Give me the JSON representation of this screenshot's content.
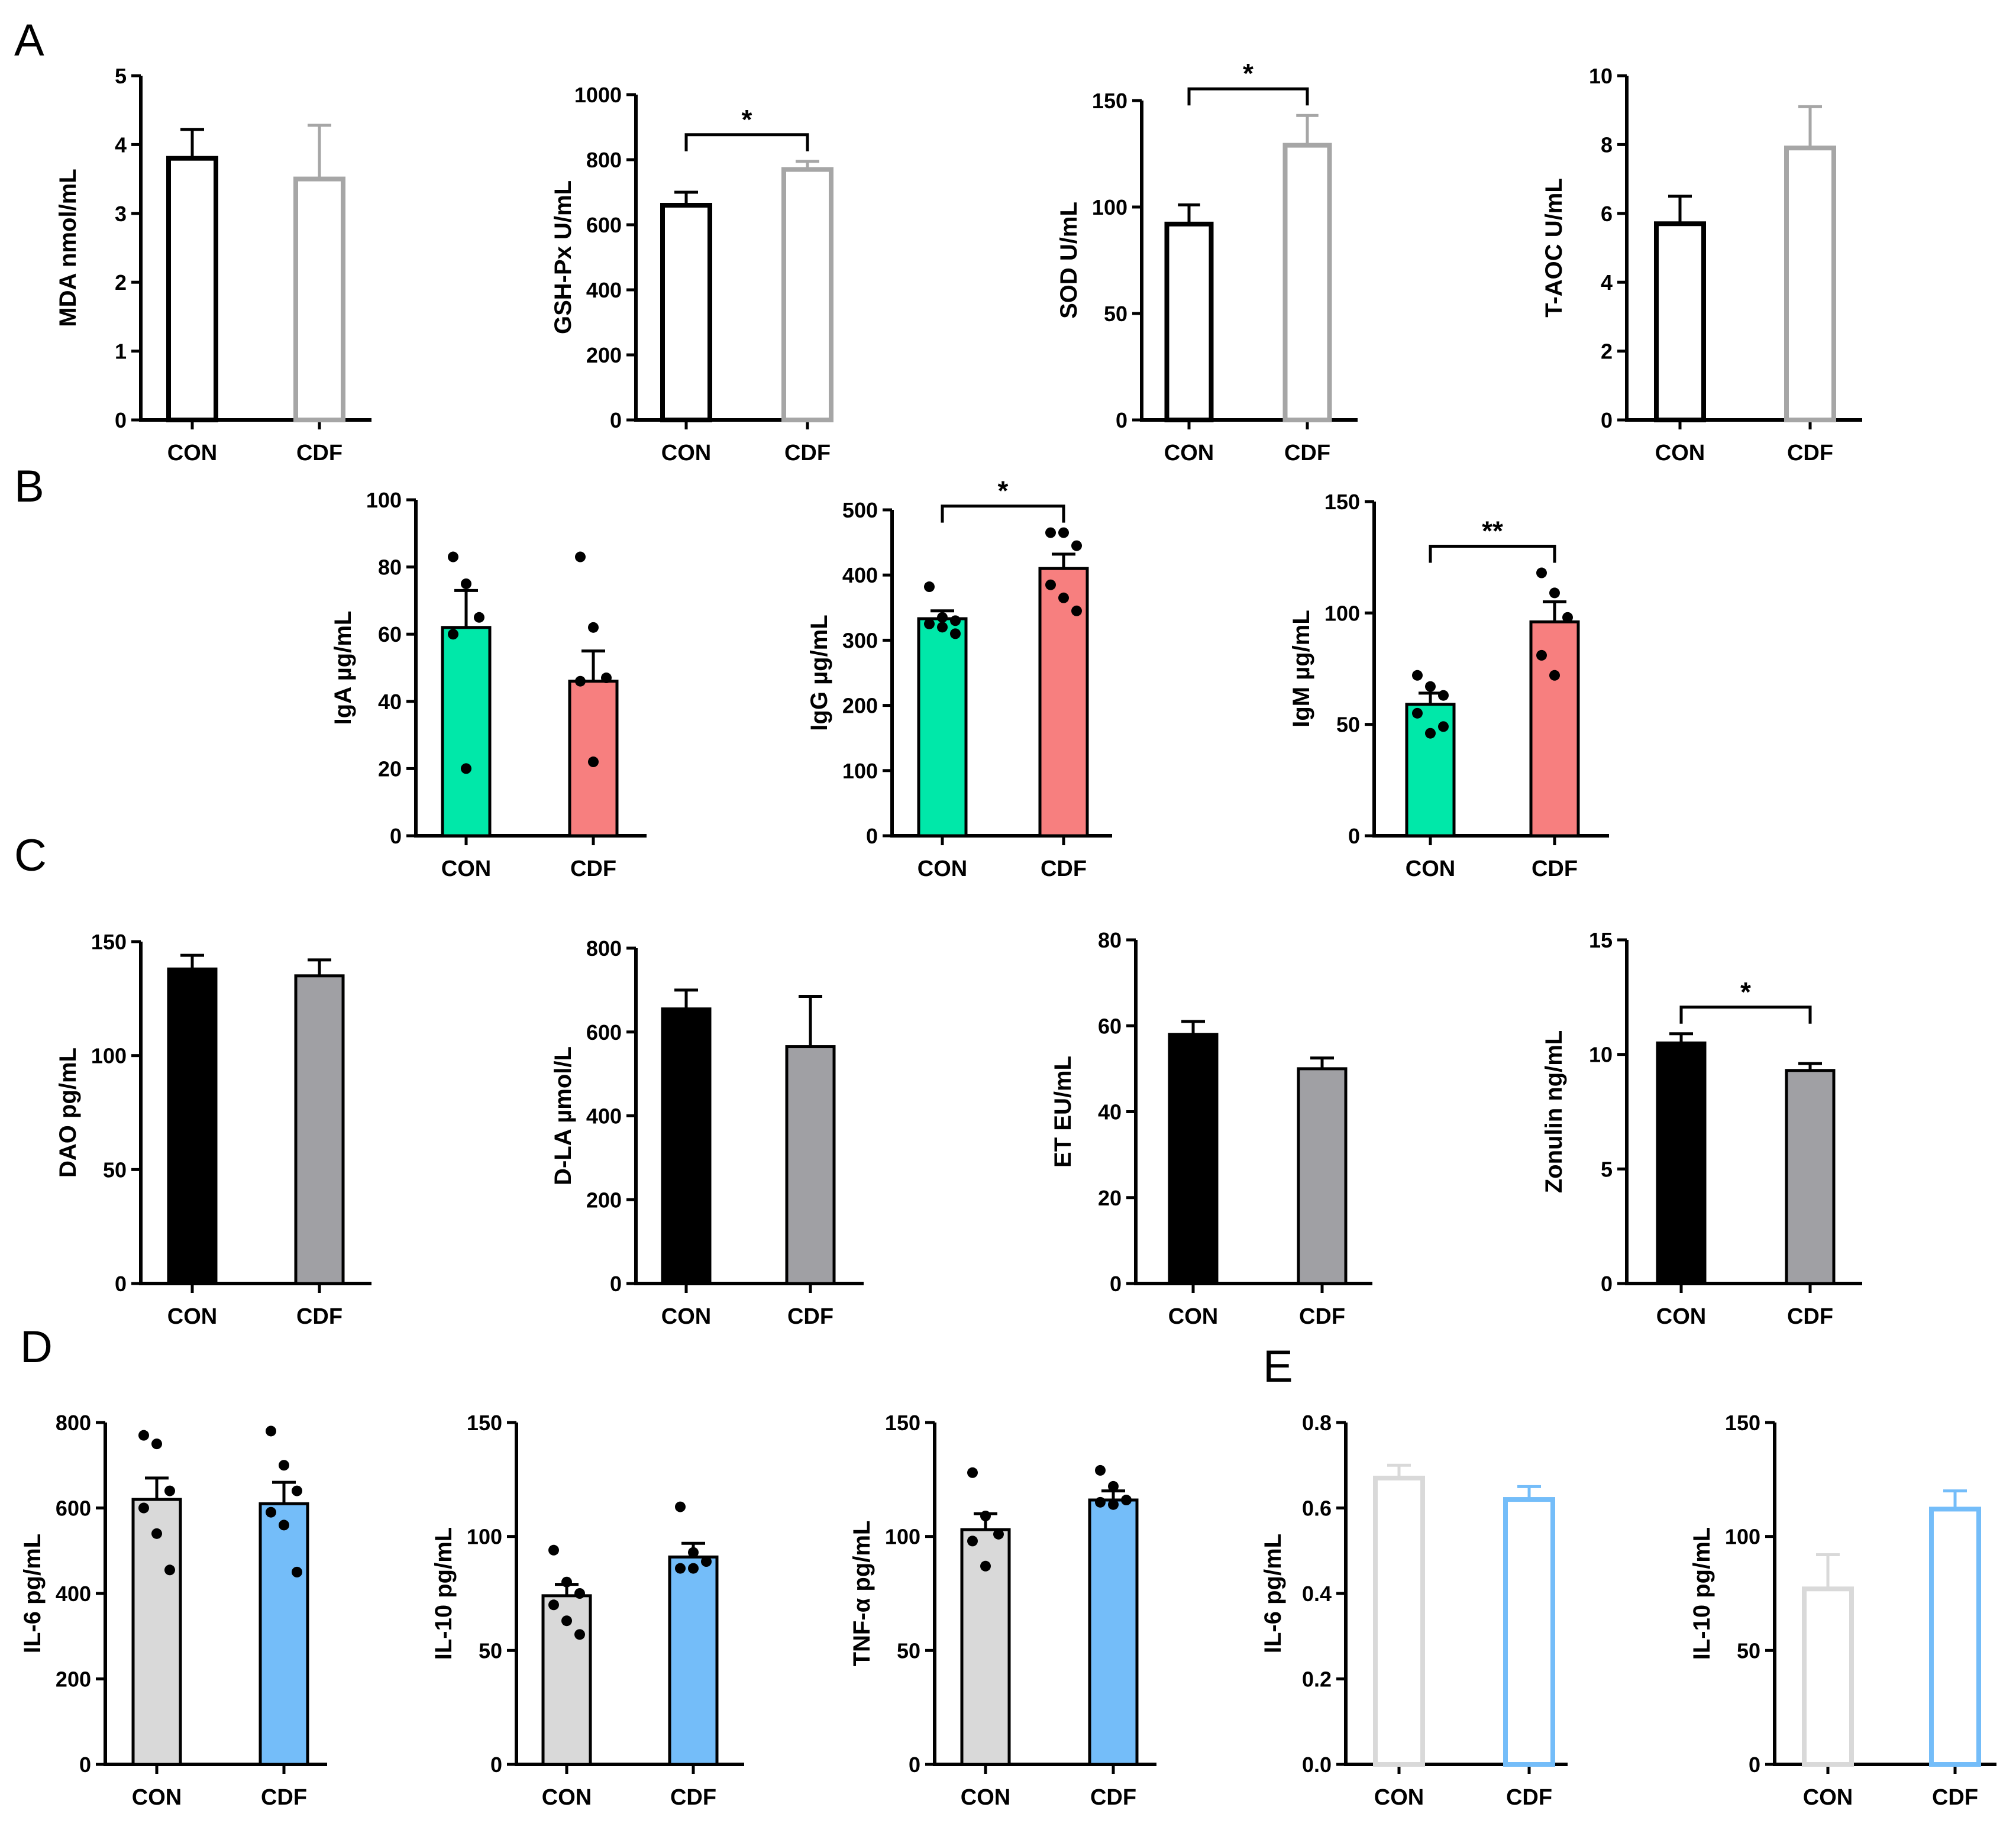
{
  "panel_letters": [
    "A",
    "B",
    "C",
    "D",
    "E"
  ],
  "chart_data": [
    {
      "id": "A1",
      "panel": "A",
      "type": "bar",
      "style": "hollow",
      "colors": [
        "#000000",
        "#a6a6a6"
      ],
      "categories": [
        "CON",
        "CDF"
      ],
      "values": [
        3.8,
        3.5
      ],
      "errors": [
        0.42,
        0.78
      ],
      "ylabel": "MDA nmol/mL",
      "ylim": [
        0,
        5
      ],
      "yticks": [
        0,
        1,
        2,
        3,
        4,
        5
      ],
      "points": null,
      "sig": ""
    },
    {
      "id": "A2",
      "panel": "A",
      "type": "bar",
      "style": "hollow",
      "colors": [
        "#000000",
        "#a6a6a6"
      ],
      "categories": [
        "CON",
        "CDF"
      ],
      "values": [
        660,
        770
      ],
      "errors": [
        40,
        25
      ],
      "ylabel": "GSH-Px U/mL",
      "ylim": [
        0,
        1000
      ],
      "yticks": [
        0,
        200,
        400,
        600,
        800,
        1000
      ],
      "points": null,
      "sig": "*"
    },
    {
      "id": "A3",
      "panel": "A",
      "type": "bar",
      "style": "hollow",
      "colors": [
        "#000000",
        "#a6a6a6"
      ],
      "categories": [
        "CON",
        "CDF"
      ],
      "values": [
        92,
        129
      ],
      "errors": [
        9,
        14
      ],
      "ylabel": "SOD U/mL",
      "ylim": [
        0,
        150
      ],
      "yticks": [
        0,
        50,
        100,
        150
      ],
      "points": null,
      "sig": "*"
    },
    {
      "id": "A4",
      "panel": "A",
      "type": "bar",
      "style": "hollow",
      "colors": [
        "#000000",
        "#a6a6a6"
      ],
      "categories": [
        "CON",
        "CDF"
      ],
      "values": [
        5.7,
        7.9
      ],
      "errors": [
        0.8,
        1.2
      ],
      "ylabel": "T-AOC U/mL",
      "ylim": [
        0,
        10
      ],
      "yticks": [
        0,
        2,
        4,
        6,
        8,
        10
      ],
      "points": null,
      "sig": ""
    },
    {
      "id": "B1",
      "panel": "B",
      "type": "bar",
      "style": "filled",
      "colors": [
        "#00e8a9",
        "#f77f7f"
      ],
      "categories": [
        "CON",
        "CDF"
      ],
      "values": [
        62,
        46
      ],
      "errors": [
        11,
        9
      ],
      "ylabel": "IgA µg/mL",
      "ylim": [
        0,
        100
      ],
      "yticks": [
        0,
        20,
        40,
        60,
        80,
        100
      ],
      "points": [
        [
          83,
          75,
          65,
          60,
          20
        ],
        [
          83,
          62,
          47,
          46,
          22
        ]
      ],
      "sig": ""
    },
    {
      "id": "B2",
      "panel": "B",
      "type": "bar",
      "style": "filled",
      "colors": [
        "#00e8a9",
        "#f77f7f"
      ],
      "categories": [
        "CON",
        "CDF"
      ],
      "values": [
        333,
        410
      ],
      "errors": [
        12,
        22
      ],
      "ylabel": "IgG µg/mL",
      "ylim": [
        0,
        500
      ],
      "yticks": [
        0,
        100,
        200,
        300,
        400,
        500
      ],
      "points": [
        [
          382,
          335,
          330,
          325,
          320,
          310
        ],
        [
          465,
          465,
          445,
          385,
          365,
          345
        ]
      ],
      "sig": "*"
    },
    {
      "id": "B3",
      "panel": "B",
      "type": "bar",
      "style": "filled",
      "colors": [
        "#00e8a9",
        "#f77f7f"
      ],
      "categories": [
        "CON",
        "CDF"
      ],
      "values": [
        59,
        96
      ],
      "errors": [
        5,
        9
      ],
      "ylabel": "IgM µg/mL",
      "ylim": [
        0,
        150
      ],
      "yticks": [
        0,
        50,
        100,
        150
      ],
      "points": [
        [
          72,
          67,
          63,
          55,
          46,
          49
        ],
        [
          118,
          109,
          98,
          81,
          72
        ]
      ],
      "sig": "**"
    },
    {
      "id": "C1",
      "panel": "C",
      "type": "bar",
      "style": "filled",
      "colors": [
        "#000000",
        "#a0a0a4"
      ],
      "categories": [
        "CON",
        "CDF"
      ],
      "values": [
        138,
        135
      ],
      "errors": [
        6,
        7
      ],
      "ylabel": "DAO pg/mL",
      "ylim": [
        0,
        150
      ],
      "yticks": [
        0,
        50,
        100,
        150
      ],
      "points": null,
      "sig": ""
    },
    {
      "id": "C2",
      "panel": "C",
      "type": "bar",
      "style": "filled",
      "colors": [
        "#000000",
        "#a0a0a4"
      ],
      "categories": [
        "CON",
        "CDF"
      ],
      "values": [
        655,
        565
      ],
      "errors": [
        45,
        120
      ],
      "ylabel": "D-LA µmol/L",
      "ylim": [
        0,
        800
      ],
      "yticks": [
        0,
        200,
        400,
        600,
        800
      ],
      "points": null,
      "sig": ""
    },
    {
      "id": "C3",
      "panel": "C",
      "type": "bar",
      "style": "filled",
      "colors": [
        "#000000",
        "#a0a0a4"
      ],
      "categories": [
        "CON",
        "CDF"
      ],
      "values": [
        58,
        50
      ],
      "errors": [
        3,
        2.5
      ],
      "ylabel": "ET EU/mL",
      "ylim": [
        0,
        80
      ],
      "yticks": [
        0,
        20,
        40,
        60,
        80
      ],
      "points": null,
      "sig": ""
    },
    {
      "id": "C4",
      "panel": "C",
      "type": "bar",
      "style": "filled",
      "colors": [
        "#000000",
        "#a0a0a4"
      ],
      "categories": [
        "CON",
        "CDF"
      ],
      "values": [
        10.5,
        9.3
      ],
      "errors": [
        0.4,
        0.3
      ],
      "ylabel": "Zonulin ng/mL",
      "ylim": [
        0,
        15
      ],
      "yticks": [
        0,
        5,
        10,
        15
      ],
      "points": null,
      "sig": "*"
    },
    {
      "id": "D1",
      "panel": "D",
      "type": "bar",
      "style": "filled",
      "colors": [
        "#d9d9d9",
        "#74bdf9"
      ],
      "categories": [
        "CON",
        "CDF"
      ],
      "values": [
        620,
        610
      ],
      "errors": [
        50,
        50
      ],
      "ylabel": "IL-6 pg/mL",
      "ylim": [
        0,
        800
      ],
      "yticks": [
        0,
        200,
        400,
        600,
        800
      ],
      "points": [
        [
          770,
          750,
          640,
          600,
          540,
          455
        ],
        [
          780,
          700,
          640,
          590,
          560,
          450
        ]
      ],
      "sig": ""
    },
    {
      "id": "D2",
      "panel": "D",
      "type": "bar",
      "style": "filled",
      "colors": [
        "#d9d9d9",
        "#74bdf9"
      ],
      "categories": [
        "CON",
        "CDF"
      ],
      "values": [
        74,
        91
      ],
      "errors": [
        5,
        6
      ],
      "ylabel": "IL-10 pg/mL",
      "ylim": [
        0,
        150
      ],
      "yticks": [
        0,
        50,
        100,
        150
      ],
      "points": [
        [
          94,
          80,
          75,
          70,
          63,
          57
        ],
        [
          113,
          93,
          89,
          86,
          86
        ]
      ],
      "sig": ""
    },
    {
      "id": "D3",
      "panel": "D",
      "type": "bar",
      "style": "filled",
      "colors": [
        "#d9d9d9",
        "#74bdf9"
      ],
      "categories": [
        "CON",
        "CDF"
      ],
      "values": [
        103,
        116
      ],
      "errors": [
        7,
        4
      ],
      "ylabel": "TNF-α pg/mL",
      "ylim": [
        0,
        150
      ],
      "yticks": [
        0,
        50,
        100,
        150
      ],
      "points": [
        [
          128,
          109,
          101,
          98,
          87
        ],
        [
          129,
          122,
          116,
          115,
          114
        ]
      ],
      "sig": ""
    },
    {
      "id": "E1",
      "panel": "E",
      "type": "bar",
      "style": "hollow",
      "colors": [
        "#d9d9d9",
        "#74bdf9"
      ],
      "categories": [
        "CON",
        "CDF"
      ],
      "values": [
        0.67,
        0.62
      ],
      "errors": [
        0.03,
        0.03
      ],
      "ylabel": "IL-6 pg/mL",
      "ylim": [
        0,
        0.8
      ],
      "yticks": [
        "0.0",
        "0.2",
        "0.4",
        "0.6",
        "0.8"
      ],
      "points": null,
      "sig": ""
    },
    {
      "id": "E2",
      "panel": "E",
      "type": "bar",
      "style": "hollow",
      "colors": [
        "#d9d9d9",
        "#74bdf9"
      ],
      "categories": [
        "CON",
        "CDF"
      ],
      "values": [
        77,
        112
      ],
      "errors": [
        15,
        8
      ],
      "ylabel": "IL-10 pg/mL",
      "ylim": [
        0,
        150
      ],
      "yticks": [
        0,
        50,
        100,
        150
      ],
      "points": null,
      "sig": ""
    }
  ]
}
